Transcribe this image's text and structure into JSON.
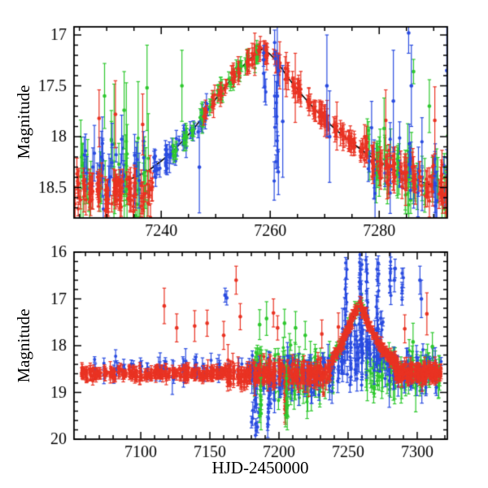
{
  "figure": {
    "ylabel_top": "Magnitude",
    "ylabel_bottom": "Magnitude",
    "xlabel": "HJD-2450000"
  },
  "chart_data": {
    "type": "scatter",
    "title": "",
    "xlabel": "HJD-2450000",
    "ylabel": "Magnitude",
    "y_axis_inverted": true,
    "series_colors": {
      "red": "#e93323",
      "green": "#2fc82f",
      "blue": "#2a4ce0",
      "model": "#000000"
    },
    "event": {
      "t_peak": 7258.4,
      "peak_magnitude": 17.14,
      "baseline_magnitude": 18.55
    },
    "panels": [
      {
        "name": "top-zoom",
        "xlim": [
          7224,
          7292.5
        ],
        "mag_lim": [
          16.92,
          18.8
        ],
        "xticks": [
          7240,
          7260,
          7280
        ],
        "xtick_labels": [
          "7240",
          "7260",
          "7280"
        ],
        "x_minor_step": 5,
        "yticks": [
          17,
          17.5,
          18,
          18.5
        ],
        "ytick_labels": [
          "17",
          "17.5",
          "18",
          "18.5"
        ],
        "y_minor_step": 0.1,
        "ylabel": "Magnitude",
        "xlabel": ""
      },
      {
        "name": "bottom-full",
        "xlim": [
          7051.7,
          7321.8
        ],
        "mag_lim": [
          16,
          20
        ],
        "xticks": [
          7100,
          7150,
          7200,
          7250,
          7300
        ],
        "xtick_labels": [
          "7100",
          "7150",
          "7200",
          "7250",
          "7300"
        ],
        "x_minor_step": 10,
        "yticks": [
          16,
          17,
          18,
          19,
          20
        ],
        "ytick_labels": [
          "16",
          "17",
          "18",
          "19",
          "20"
        ],
        "y_minor_step": 0.2,
        "ylabel": "Magnitude",
        "xlabel": "HJD-2450000"
      }
    ],
    "model_curve": [
      [
        7232,
        18.47
      ],
      [
        7236,
        18.38
      ],
      [
        7238,
        18.32
      ],
      [
        7240,
        18.24
      ],
      [
        7242,
        18.15
      ],
      [
        7244,
        18.04
      ],
      [
        7246,
        17.92
      ],
      [
        7248,
        17.78
      ],
      [
        7250,
        17.63
      ],
      [
        7252,
        17.49
      ],
      [
        7254,
        17.36
      ],
      [
        7256,
        17.25
      ],
      [
        7257,
        17.2
      ],
      [
        7258,
        17.16
      ],
      [
        7258.5,
        17.14
      ],
      [
        7259,
        17.15
      ],
      [
        7260,
        17.19
      ],
      [
        7261,
        17.25
      ],
      [
        7262,
        17.32
      ],
      [
        7263,
        17.4
      ],
      [
        7264,
        17.47
      ],
      [
        7266,
        17.6
      ],
      [
        7268,
        17.72
      ],
      [
        7270,
        17.83
      ],
      [
        7272,
        17.93
      ],
      [
        7274,
        18.02
      ],
      [
        7276,
        18.1
      ],
      [
        7278,
        18.18
      ],
      [
        7280,
        18.25
      ],
      [
        7282,
        18.31
      ],
      [
        7284,
        18.36
      ],
      [
        7286,
        18.41
      ],
      [
        7288,
        18.45
      ],
      [
        7290,
        18.48
      ],
      [
        7293,
        18.52
      ]
    ],
    "model_curve_draw_range": [
      [
        7232,
        7293
      ],
      [
        7238,
        7286
      ]
    ],
    "scatter_specs": [
      {
        "panel": 0,
        "color": "green",
        "kind": "band",
        "t": [
          7224.5,
          7238
        ],
        "n": 48,
        "mag": 18.42,
        "sigma": 0.2,
        "err": [
          0.1,
          0.32
        ],
        "nights": 8
      },
      {
        "panel": 0,
        "color": "blue",
        "kind": "band",
        "t": [
          7225,
          7237.5
        ],
        "n": 36,
        "mag": 18.38,
        "sigma": 0.18,
        "err": [
          0.07,
          0.28
        ],
        "nights": 7
      },
      {
        "panel": 0,
        "color": "red",
        "kind": "band",
        "t": [
          7224,
          7238.5
        ],
        "n": 120,
        "mag": 18.54,
        "sigma": 0.09,
        "err": [
          0.04,
          0.16
        ],
        "nights": 11
      },
      {
        "panel": 0,
        "color": "blue",
        "kind": "curve",
        "t": [
          7238.5,
          7249
        ],
        "n": 60,
        "sigma": 0.05,
        "err": [
          0.04,
          0.1
        ],
        "nights": 8
      },
      {
        "panel": 0,
        "color": "green",
        "kind": "curve",
        "t": [
          7242,
          7258.5
        ],
        "n": 75,
        "sigma": 0.035,
        "err": [
          0.04,
          0.09
        ],
        "nights": 10
      },
      {
        "panel": 0,
        "color": "red",
        "kind": "curve",
        "t": [
          7247.5,
          7277.5
        ],
        "n": 170,
        "sigma": 0.03,
        "err": [
          0.04,
          0.12
        ],
        "nights": 24
      },
      {
        "panel": 0,
        "color": "green",
        "kind": "curve",
        "t": [
          7277,
          7293
        ],
        "n": 55,
        "sigma": 0.13,
        "err": [
          0.08,
          0.3
        ],
        "nights": 9
      },
      {
        "panel": 0,
        "color": "blue",
        "kind": "curve",
        "t": [
          7278,
          7293
        ],
        "n": 40,
        "sigma": 0.16,
        "err": [
          0.07,
          0.3
        ],
        "nights": 7
      },
      {
        "panel": 0,
        "color": "red",
        "kind": "curve",
        "t": [
          7277,
          7293
        ],
        "n": 110,
        "sigma": 0.09,
        "err": [
          0.05,
          0.16
        ],
        "nights": 13
      },
      {
        "panel": 0,
        "color": "blue",
        "kind": "column",
        "t0": 7261.1,
        "tjit": 0.3,
        "mrange": [
          17.05,
          18.55
        ],
        "n": 13,
        "err": [
          0.06,
          0.25
        ]
      },
      {
        "panel": 0,
        "color": "blue",
        "kind": "column",
        "t0": 7258.8,
        "tjit": 0.15,
        "mrange": [
          17.1,
          17.65
        ],
        "n": 5,
        "err": [
          0.05,
          0.15
        ]
      },
      {
        "panel": 1,
        "color": "green",
        "kind": "band",
        "t": [
          7180,
          7240
        ],
        "n": 120,
        "mag": 18.6,
        "sigma": 0.25,
        "err": [
          0.08,
          0.4
        ],
        "nights": 20
      },
      {
        "panel": 1,
        "color": "green",
        "kind": "curve",
        "t": [
          7240,
          7262
        ],
        "n": 50,
        "sigma": 0.06,
        "err": [
          0.05,
          0.15
        ],
        "nights": 8
      },
      {
        "panel": 1,
        "color": "green",
        "kind": "band",
        "t": [
          7262,
          7318
        ],
        "n": 110,
        "mag": 18.58,
        "sigma": 0.2,
        "err": [
          0.08,
          0.35
        ],
        "nights": 20
      },
      {
        "panel": 1,
        "color": "blue",
        "kind": "band",
        "t": [
          7065,
          7180
        ],
        "n": 90,
        "mag": 18.5,
        "sigma": 0.1,
        "err": [
          0.05,
          0.2
        ],
        "nights": 18
      },
      {
        "panel": 1,
        "color": "blue",
        "kind": "band",
        "t": [
          7180,
          7245
        ],
        "n": 110,
        "mag": 18.6,
        "sigma": 0.22,
        "err": [
          0.06,
          0.3
        ],
        "nights": 18
      },
      {
        "panel": 1,
        "color": "blue",
        "kind": "band",
        "t": [
          7245,
          7278
        ],
        "n": 90,
        "mag": 18.1,
        "sigma": 0.35,
        "err": [
          0.06,
          0.3
        ],
        "nights": 12
      },
      {
        "panel": 1,
        "color": "blue",
        "kind": "band",
        "t": [
          7278,
          7318
        ],
        "n": 60,
        "mag": 18.55,
        "sigma": 0.18,
        "err": [
          0.06,
          0.3
        ],
        "nights": 12
      },
      {
        "panel": 1,
        "color": "blue",
        "kind": "column",
        "t0": 7183,
        "tjit": 1.0,
        "mrange": [
          18.6,
          19.95
        ],
        "n": 18,
        "err": [
          0.08,
          0.25
        ]
      },
      {
        "panel": 1,
        "color": "blue",
        "kind": "column",
        "t0": 7193,
        "tjit": 0.8,
        "mrange": [
          18.6,
          19.8
        ],
        "n": 12,
        "err": [
          0.08,
          0.25
        ]
      },
      {
        "panel": 1,
        "color": "blue",
        "kind": "column",
        "t0": 7248.3,
        "tjit": 0.5,
        "mrange": [
          16.2,
          18.45
        ],
        "n": 14,
        "err": [
          0.08,
          0.3
        ]
      },
      {
        "panel": 1,
        "color": "blue",
        "kind": "column",
        "t0": 7258.8,
        "tjit": 0.6,
        "mrange": [
          16.05,
          18.3
        ],
        "n": 22,
        "err": [
          0.08,
          0.3
        ]
      },
      {
        "panel": 1,
        "color": "blue",
        "kind": "column",
        "t0": 7263.5,
        "tjit": 0.4,
        "mrange": [
          16.1,
          17.8
        ],
        "n": 10,
        "err": [
          0.08,
          0.3
        ]
      },
      {
        "panel": 1,
        "color": "blue",
        "kind": "column",
        "t0": 7271.5,
        "tjit": 0.5,
        "mrange": [
          16.15,
          18.3
        ],
        "n": 14,
        "err": [
          0.08,
          0.3
        ]
      },
      {
        "panel": 1,
        "color": "blue",
        "kind": "column",
        "t0": 7280.8,
        "tjit": 0.4,
        "mrange": [
          16.1,
          17.0
        ],
        "n": 6,
        "err": [
          0.1,
          0.3
        ]
      },
      {
        "panel": 1,
        "color": "blue",
        "kind": "column",
        "t0": 7289.5,
        "tjit": 0.4,
        "mrange": [
          16.35,
          17.1
        ],
        "n": 5,
        "err": [
          0.1,
          0.3
        ]
      },
      {
        "panel": 1,
        "color": "red",
        "kind": "band",
        "t": [
          7056,
          7162
        ],
        "n": 330,
        "mag": 18.6,
        "sigma": 0.06,
        "err": [
          0.03,
          0.12
        ],
        "nights": 40
      },
      {
        "panel": 1,
        "color": "red",
        "kind": "band",
        "t": [
          7162,
          7238
        ],
        "n": 300,
        "mag": 18.62,
        "sigma": 0.11,
        "err": [
          0.04,
          0.2
        ],
        "nights": 33
      },
      {
        "panel": 1,
        "color": "red",
        "kind": "curve",
        "t": [
          7238,
          7286
        ],
        "n": 230,
        "sigma": 0.05,
        "err": [
          0.04,
          0.12
        ],
        "nights": 30
      },
      {
        "panel": 1,
        "color": "red",
        "kind": "band",
        "t": [
          7284,
          7318
        ],
        "n": 190,
        "mag": 18.58,
        "sigma": 0.09,
        "err": [
          0.04,
          0.15
        ],
        "nights": 22
      },
      {
        "panel": 1,
        "color": "red",
        "kind": "column",
        "t0": 7204.5,
        "tjit": 0.5,
        "mrange": [
          18.8,
          19.5
        ],
        "n": 8,
        "err": [
          0.1,
          0.3
        ]
      },
      {
        "panel": 1,
        "color": "green",
        "kind": "column",
        "t0": 7186.5,
        "tjit": 0.4,
        "mrange": [
          18.8,
          19.6
        ],
        "n": 7,
        "err": [
          0.1,
          0.3
        ]
      },
      {
        "panel": 1,
        "color": "green",
        "kind": "column",
        "t0": 7205.5,
        "tjit": 0.4,
        "mrange": [
          18.7,
          19.55
        ],
        "n": 7,
        "err": [
          0.1,
          0.3
        ]
      }
    ],
    "outlier_points": [
      {
        "panel": 0,
        "color": "red",
        "pts": [
          [
            7228.6,
            17.82,
            0.28
          ],
          [
            7231.6,
            17.78,
            0.33
          ],
          [
            7236.6,
            17.88,
            0.3
          ],
          [
            7264.6,
            17.52,
            0.34
          ],
          [
            7281.2,
            17.84,
            0.3
          ],
          [
            7290.2,
            17.84,
            0.33
          ]
        ]
      },
      {
        "panel": 0,
        "color": "green",
        "pts": [
          [
            7229.6,
            17.6,
            0.32
          ],
          [
            7233.2,
            17.74,
            0.38
          ],
          [
            7237.4,
            17.52,
            0.42
          ],
          [
            7243.8,
            17.5,
            0.35
          ],
          [
            7286.3,
            17.36,
            0.12
          ],
          [
            7280.9,
            17.92,
            0.3
          ],
          [
            7289.2,
            17.7,
            0.26
          ]
        ]
      },
      {
        "panel": 0,
        "color": "blue",
        "pts": [
          [
            7247.0,
            18.3,
            0.45
          ],
          [
            7261.3,
            17.6,
            0.75
          ],
          [
            7262.3,
            17.85,
            0.55
          ],
          [
            7270.4,
            17.5,
            0.5
          ],
          [
            7270.9,
            18.0,
            0.45
          ],
          [
            7285.4,
            16.98,
            0.2
          ],
          [
            7285.9,
            17.5,
            0.4
          ],
          [
            7282.6,
            17.65,
            0.5
          ],
          [
            7292.4,
            17.35,
            0.55
          ]
        ]
      },
      {
        "panel": 1,
        "color": "red",
        "pts": [
          [
            7117,
            17.15,
            0.38
          ],
          [
            7126,
            17.62,
            0.3
          ],
          [
            7139,
            17.58,
            0.33
          ],
          [
            7148,
            17.52,
            0.28
          ],
          [
            7160,
            17.78,
            0.3
          ],
          [
            7169,
            16.6,
            0.3
          ],
          [
            7172,
            17.38,
            0.28
          ],
          [
            7196,
            17.3,
            0.3
          ],
          [
            7199,
            17.62,
            0.26
          ],
          [
            7231,
            17.75,
            0.3
          ],
          [
            7243,
            17.6,
            0.3
          ],
          [
            7291,
            17.64,
            0.3
          ],
          [
            7307,
            17.32,
            0.45
          ]
        ]
      },
      {
        "panel": 1,
        "color": "green",
        "pts": [
          [
            7186,
            17.55,
            0.32
          ],
          [
            7191,
            17.42,
            0.36
          ],
          [
            7204,
            17.52,
            0.3
          ],
          [
            7212,
            17.62,
            0.35
          ],
          [
            7219,
            17.78,
            0.3
          ],
          [
            7297,
            17.92,
            0.4
          ],
          [
            7311,
            18.02,
            0.3
          ],
          [
            7187,
            19.45,
            0.35
          ],
          [
            7206,
            19.5,
            0.3
          ]
        ]
      },
      {
        "panel": 1,
        "color": "blue",
        "pts": [
          [
            7161,
            16.92,
            0.15
          ],
          [
            7162.2,
            16.98,
            0.15
          ],
          [
            7283.5,
            16.6,
            0.25
          ],
          [
            7284,
            16.35,
            0.2
          ],
          [
            7302,
            16.6,
            0.3
          ],
          [
            7303,
            17.0,
            0.4
          ]
        ]
      }
    ]
  }
}
